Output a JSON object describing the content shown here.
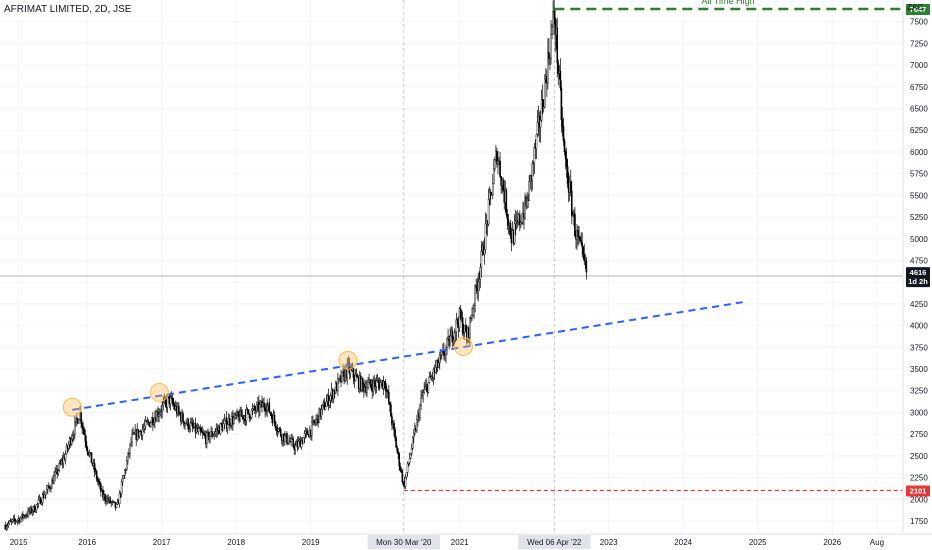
{
  "chart_data": {
    "type": "candlestick",
    "title": "AFRIMAT LIMITED, 2D, JSE",
    "currency": "ZAC",
    "ylim": [
      1600,
      7750
    ],
    "y_ticks": [
      1750,
      2000,
      2250,
      2500,
      2750,
      3000,
      3250,
      3500,
      3750,
      4000,
      4250,
      4500,
      4750,
      5000,
      5250,
      5500,
      5750,
      6000,
      6250,
      6500,
      6750,
      7000,
      7250,
      7500
    ],
    "x_ticks": [
      "2015",
      "2016",
      "2017",
      "2018",
      "2019",
      "2021",
      "2023",
      "2024",
      "2025",
      "2026",
      "Aug"
    ],
    "x_ticks_years": [
      2015.08,
      2016.0,
      2017.0,
      2018.0,
      2019.0,
      2021.0,
      2023.0,
      2024.0,
      2025.0,
      2026.0,
      2026.6
    ],
    "xlim": [
      2014.83,
      2026.95
    ],
    "series": [
      {
        "values_x": [
          2014.9,
          2015.1,
          2015.3,
          2015.5,
          2015.7,
          2015.9,
          2016.0,
          2016.2,
          2016.4,
          2016.6,
          2016.8,
          2017.0,
          2017.1,
          2017.3,
          2017.6,
          2017.9,
          2018.2,
          2018.4,
          2018.6,
          2018.8,
          2019.0,
          2019.2,
          2019.5,
          2019.7,
          2020.0,
          2020.15,
          2020.25,
          2020.5,
          2020.8,
          2021.0,
          2021.1,
          2021.3,
          2021.5,
          2021.7,
          2021.9,
          2022.1,
          2022.27,
          2022.4,
          2022.55,
          2022.7
        ],
        "values_y": [
          1700,
          1780,
          1900,
          2150,
          2500,
          3000,
          2600,
          2050,
          1900,
          2700,
          2850,
          3050,
          3150,
          2900,
          2700,
          2900,
          3000,
          3100,
          2750,
          2600,
          2800,
          3100,
          3500,
          3300,
          3350,
          2600,
          2150,
          3200,
          3700,
          4100,
          3850,
          4800,
          6000,
          5000,
          5400,
          6500,
          7600,
          6000,
          5100,
          4616
        ]
      }
    ],
    "trendline": {
      "x": [
        2015.8,
        2024.8
      ],
      "y": [
        3030,
        4270
      ]
    },
    "touch_points": {
      "x": [
        2015.8,
        2016.97,
        2019.5,
        2021.05
      ],
      "y": [
        3060,
        3230,
        3600,
        3760
      ]
    },
    "levels": [
      {
        "name": "All Time High",
        "value": 7647,
        "start_x": 2022.27
      },
      {
        "name": "",
        "value": 2101,
        "start_x": 2020.25
      }
    ],
    "last_price": {
      "value": 4616,
      "countdown": "1d 2h"
    },
    "crosshair_dates": [
      {
        "label": "Mon 30 Mar '20",
        "x": 2020.25
      },
      {
        "label": "Wed 06 Apr '22",
        "x": 2022.27
      }
    ]
  },
  "colors": {
    "candle": "#000000",
    "trendline": "#2962ff",
    "ath_line": "#2e7d32",
    "support_line": "#e53935",
    "touch_point": "#ffb74d",
    "last_price_bg": "#131722"
  }
}
